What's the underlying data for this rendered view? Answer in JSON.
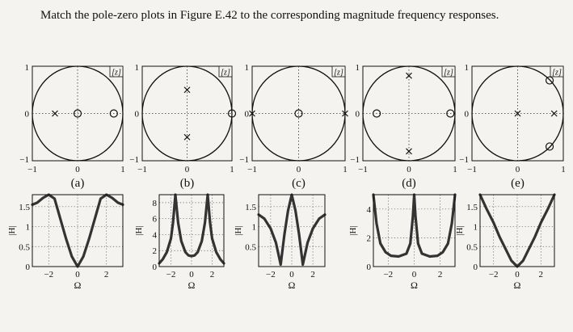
{
  "question": {
    "text": "Match the pole-zero plots in Figure E.42 to the corresponding magnitude frequency responses."
  },
  "pz_axis": {
    "xticks": [
      "−1",
      "0",
      "1"
    ],
    "yticks": [
      "−1",
      "0",
      "1"
    ],
    "z_label": "[z]"
  },
  "pz_plots": [
    {
      "label": "(a)",
      "poles": [
        [
          -0.5,
          0
        ]
      ],
      "zeros": [
        [
          0,
          0
        ],
        [
          0.8,
          0
        ]
      ]
    },
    {
      "label": "(b)",
      "poles": [
        [
          0,
          0.5
        ],
        [
          0,
          -0.5
        ]
      ],
      "zeros": [
        [
          1,
          0
        ]
      ]
    },
    {
      "label": "(c)",
      "poles": [
        [
          -1,
          0
        ],
        [
          1,
          0
        ]
      ],
      "zeros": [
        [
          0,
          0
        ]
      ]
    },
    {
      "label": "(d)",
      "poles": [
        [
          0,
          0.8
        ],
        [
          0,
          -0.8
        ]
      ],
      "zeros": [
        [
          -0.7,
          0
        ],
        [
          0.9,
          0
        ]
      ]
    },
    {
      "label": "(e)",
      "poles": [
        [
          0,
          0
        ],
        [
          0.8,
          0
        ]
      ],
      "zeros": [
        [
          0.7,
          0.7
        ],
        [
          0.7,
          -0.7
        ]
      ]
    }
  ],
  "chart_data": [
    {
      "type": "line",
      "ylabel": "|H|",
      "xlabel": "Ω",
      "xlim": [
        -3.14,
        3.14
      ],
      "ylim": [
        0,
        1.8
      ],
      "xticks": [
        -2,
        0,
        2
      ],
      "yticks": [
        0,
        0.5,
        1,
        1.5
      ],
      "series": [
        {
          "x": [
            -3.14,
            -2.8,
            -2.4,
            -2,
            -1.6,
            -1.2,
            -0.8,
            -0.4,
            0,
            0.4,
            0.8,
            1.2,
            1.6,
            2,
            2.4,
            2.8,
            3.14
          ],
          "y": [
            1.55,
            1.6,
            1.72,
            1.85,
            1.7,
            1.2,
            0.7,
            0.25,
            0,
            0.25,
            0.7,
            1.2,
            1.7,
            1.85,
            1.72,
            1.6,
            1.55
          ]
        }
      ]
    },
    {
      "type": "line",
      "ylabel": "|H|",
      "xlabel": "Ω",
      "xlim": [
        -3.14,
        3.14
      ],
      "ylim": [
        0,
        9
      ],
      "xticks": [
        -2,
        0,
        2
      ],
      "yticks": [
        0,
        2,
        4,
        6,
        8
      ],
      "series": [
        {
          "x": [
            -3.14,
            -2.8,
            -2.4,
            -2,
            -1.8,
            -1.57,
            -1.3,
            -1,
            -0.6,
            -0.3,
            0,
            0.3,
            0.6,
            1,
            1.3,
            1.57,
            1.8,
            2,
            2.4,
            2.8,
            3.14
          ],
          "y": [
            0.4,
            0.9,
            1.8,
            3.5,
            5.5,
            9,
            5.5,
            3.2,
            1.8,
            1.4,
            1.3,
            1.4,
            1.8,
            3.2,
            5.5,
            9,
            5.5,
            3.5,
            1.8,
            0.9,
            0.4
          ]
        }
      ]
    },
    {
      "type": "line",
      "ylabel": "|H|",
      "xlabel": "Ω",
      "xlim": [
        -3.14,
        3.14
      ],
      "ylim": [
        0,
        1.8
      ],
      "xticks": [
        -2,
        0,
        2
      ],
      "yticks": [
        0.5,
        1,
        1.5
      ],
      "series": [
        {
          "x": [
            -3.14,
            -2.6,
            -2,
            -1.5,
            -1.05,
            -0.7,
            -0.35,
            0,
            0.35,
            0.7,
            1.05,
            1.5,
            2,
            2.6,
            3.14
          ],
          "y": [
            1.3,
            1.2,
            0.95,
            0.6,
            0.05,
            0.8,
            1.4,
            1.9,
            1.4,
            0.8,
            0.05,
            0.6,
            0.95,
            1.2,
            1.3
          ]
        }
      ]
    },
    {
      "type": "line",
      "ylabel": "|H|",
      "xlabel": "Ω",
      "xlim": [
        -3.14,
        3.14
      ],
      "ylim": [
        0,
        5
      ],
      "xticks": [
        -2,
        0,
        2
      ],
      "yticks": [
        0,
        2,
        4
      ],
      "series": [
        {
          "x": [
            -3.14,
            -2.9,
            -2.6,
            -2.2,
            -1.8,
            -1.2,
            -0.6,
            -0.3,
            -0.1,
            0,
            0.1,
            0.3,
            0.6,
            1.2,
            1.8,
            2.2,
            2.6,
            2.9,
            3.14
          ],
          "y": [
            5,
            3,
            1.6,
            1,
            0.75,
            0.7,
            0.9,
            1.6,
            3.5,
            5,
            3.5,
            1.6,
            0.9,
            0.7,
            0.75,
            1,
            1.6,
            3,
            5
          ]
        }
      ]
    },
    {
      "type": "line",
      "ylabel": "|H|",
      "xlabel": "Ω",
      "xlim": [
        -3.14,
        3.14
      ],
      "ylim": [
        0,
        1.8
      ],
      "xticks": [
        -2,
        0,
        2
      ],
      "yticks": [
        0,
        0.5,
        1,
        1.5
      ],
      "series": [
        {
          "x": [
            -3.14,
            -2.6,
            -2,
            -1.5,
            -1,
            -0.5,
            0,
            0.5,
            1,
            1.5,
            2,
            2.6,
            3.14
          ],
          "y": [
            1.8,
            1.45,
            1.1,
            0.75,
            0.45,
            0.15,
            0,
            0.15,
            0.45,
            0.75,
            1.1,
            1.45,
            1.8
          ]
        }
      ]
    }
  ]
}
